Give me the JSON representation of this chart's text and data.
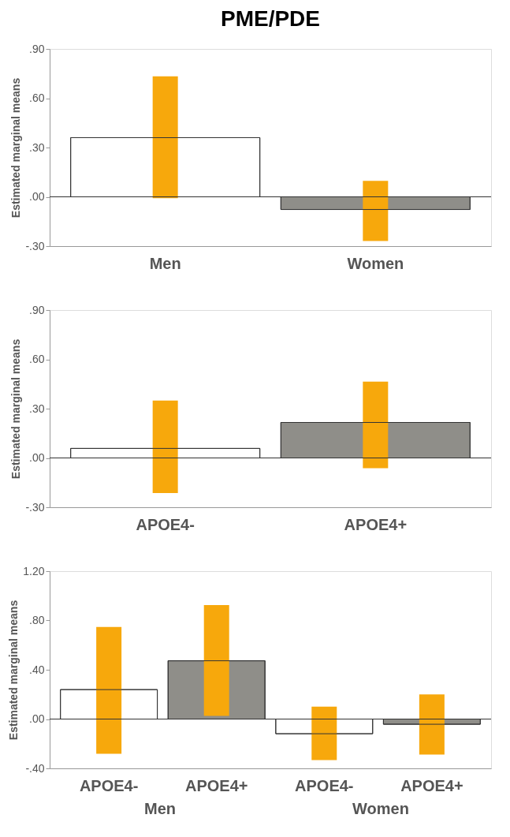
{
  "chart_data": [
    {
      "type": "bar",
      "title": "PME/PDE",
      "ylabel": "Estimated marginal means",
      "categories": [
        "Men",
        "Women"
      ],
      "values": [
        0.36,
        -0.077
      ],
      "colors": [
        "#ffffff",
        "#8f8e89"
      ],
      "errors": [
        [
          -0.008,
          0.733
        ],
        [
          -0.269,
          0.097
        ]
      ],
      "ylim": [
        -0.3,
        0.9
      ],
      "yticks": [
        {
          "value": -0.3,
          "label": "-.30"
        },
        {
          "value": 0,
          "label": ".00"
        },
        {
          "value": 0.3,
          "label": ".30"
        },
        {
          "value": 0.6,
          "label": ".60"
        },
        {
          "value": 0.9,
          "label": ".90"
        }
      ],
      "ref_lines": [
        {
          "axis": "y",
          "value": 0
        }
      ]
    },
    {
      "type": "bar",
      "ylabel": "Estimated marginal means",
      "categories": [
        "APOE4-",
        "APOE4+"
      ],
      "values": [
        0.058,
        0.216
      ],
      "colors": [
        "#ffffff",
        "#8f8e89"
      ],
      "errors": [
        [
          -0.214,
          0.349
        ],
        [
          -0.062,
          0.464
        ]
      ],
      "ylim": [
        -0.3,
        0.9
      ],
      "yticks": [
        {
          "value": -0.3,
          "label": "-.30"
        },
        {
          "value": 0,
          "label": ".00"
        },
        {
          "value": 0.3,
          "label": ".30"
        },
        {
          "value": 0.6,
          "label": ".60"
        },
        {
          "value": 0.9,
          "label": ".90"
        }
      ],
      "ref_lines": [
        {
          "axis": "y",
          "value": 0
        }
      ]
    },
    {
      "type": "bar",
      "ylabel": "Estimated marginal means",
      "categories": [
        "APOE4-",
        "APOE4+",
        "APOE4-",
        "APOE4+"
      ],
      "values": [
        0.239,
        0.473,
        -0.119,
        -0.042
      ],
      "colors": [
        "#ffffff",
        "#8f8e89",
        "#ffffff",
        "#8f8e89"
      ],
      "errors": [
        [
          -0.281,
          0.748
        ],
        [
          0.026,
          0.925
        ],
        [
          -0.332,
          0.101
        ],
        [
          -0.288,
          0.2
        ]
      ],
      "ylim": [
        -0.4,
        1.2
      ],
      "yticks": [
        {
          "value": -0.4,
          "label": "-.40"
        },
        {
          "value": 0,
          "label": ".00"
        },
        {
          "value": 0.4,
          "label": ".40"
        },
        {
          "value": 0.8,
          "label": ".80"
        },
        {
          "value": 1.2,
          "label": "1.20"
        }
      ],
      "ref_lines": [
        {
          "axis": "y",
          "value": 0
        }
      ],
      "annotations": [
        "Men",
        "Women"
      ]
    }
  ]
}
